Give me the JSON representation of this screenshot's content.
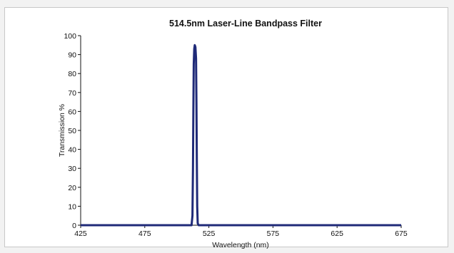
{
  "chart_data": {
    "type": "line",
    "title": "514.5nm Laser-Line Bandpass Filter",
    "xlabel": "Wavelength (nm)",
    "ylabel": "Transmission %",
    "xlim": [
      425,
      675
    ],
    "ylim": [
      0,
      100
    ],
    "x_ticks": [
      "425",
      "475",
      "525",
      "575",
      "625",
      "675"
    ],
    "y_ticks": [
      "0",
      "10",
      "20",
      "30",
      "40",
      "50",
      "60",
      "70",
      "80",
      "90",
      "100"
    ],
    "grid": false,
    "legend": "none",
    "series": [
      {
        "color": "#1f2a78",
        "points": [
          [
            425,
            0
          ],
          [
            511.5,
            0
          ],
          [
            512.2,
            5
          ],
          [
            512.6,
            30
          ],
          [
            512.9,
            60
          ],
          [
            513.2,
            85
          ],
          [
            513.6,
            93
          ],
          [
            514.0,
            95
          ],
          [
            514.5,
            94
          ],
          [
            515.0,
            88
          ],
          [
            515.3,
            65
          ],
          [
            515.6,
            35
          ],
          [
            515.9,
            10
          ],
          [
            516.3,
            1
          ],
          [
            517,
            0
          ],
          [
            675,
            0
          ]
        ]
      }
    ]
  }
}
